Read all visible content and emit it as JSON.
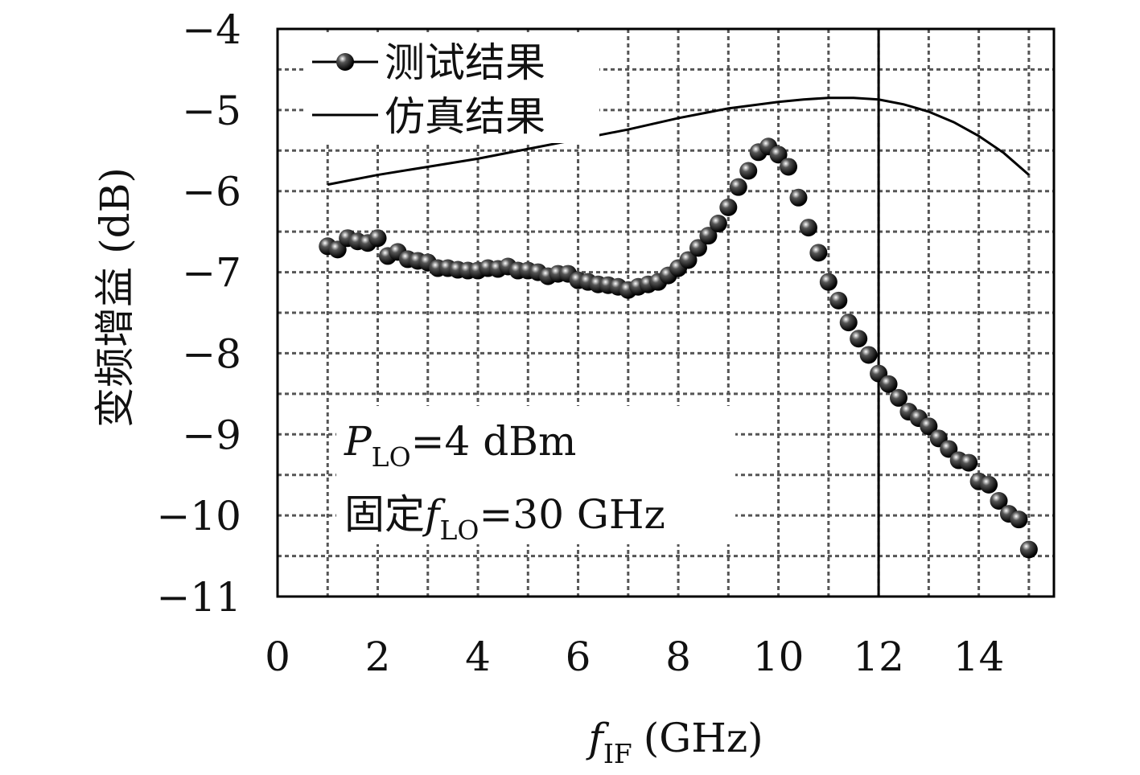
{
  "chart_data": {
    "type": "line",
    "xlabel": {
      "main": "f",
      "sub": "IF",
      "unit": "(GHz)"
    },
    "ylabel": "变频增益 (dB)",
    "xlim": [
      0,
      15.5
    ],
    "ylim": [
      -11,
      -4
    ],
    "x_ticks": [
      0,
      2,
      4,
      6,
      8,
      10,
      12,
      14
    ],
    "y_ticks": [
      -4,
      -5,
      -6,
      -7,
      -8,
      -9,
      -10,
      -11
    ],
    "y_tick_labels": [
      "−4",
      "−5",
      "−6",
      "−7",
      "−8",
      "−9",
      "−10",
      "−11"
    ],
    "x_tick_labels": [
      "0",
      "2",
      "4",
      "6",
      "8",
      "10",
      "12",
      "14"
    ],
    "grid": true,
    "reference_line_x": 12,
    "legend": {
      "placement": "top-left",
      "entries": [
        "测试结果",
        "仿真结果"
      ]
    },
    "annotation": {
      "line1": {
        "main": "P",
        "sub": "LO",
        "rest": "=4 dBm"
      },
      "line2": {
        "prefix": "固定",
        "main": "f",
        "sub": "LO",
        "rest": "=30 GHz"
      }
    },
    "series": [
      {
        "name": "测试结果",
        "style": "markers-line",
        "x": [
          1.0,
          1.2,
          1.4,
          1.6,
          1.8,
          2.0,
          2.2,
          2.4,
          2.6,
          2.8,
          3.0,
          3.2,
          3.4,
          3.6,
          3.8,
          4.0,
          4.2,
          4.4,
          4.6,
          4.8,
          5.0,
          5.2,
          5.4,
          5.6,
          5.8,
          6.0,
          6.2,
          6.4,
          6.6,
          6.8,
          7.0,
          7.2,
          7.4,
          7.6,
          7.8,
          8.0,
          8.2,
          8.4,
          8.6,
          8.8,
          9.0,
          9.2,
          9.4,
          9.6,
          9.8,
          10.0,
          10.2,
          10.4,
          10.6,
          10.8,
          11.0,
          11.2,
          11.4,
          11.6,
          11.8,
          12.0,
          12.2,
          12.4,
          12.6,
          12.8,
          13.0,
          13.2,
          13.4,
          13.6,
          13.8,
          14.0,
          14.2,
          14.4,
          14.6,
          14.8,
          15.0
        ],
        "y": [
          -6.68,
          -6.72,
          -6.58,
          -6.62,
          -6.64,
          -6.58,
          -6.8,
          -6.75,
          -6.84,
          -6.86,
          -6.88,
          -6.95,
          -6.95,
          -6.97,
          -6.98,
          -6.98,
          -6.95,
          -6.96,
          -6.93,
          -6.98,
          -6.98,
          -7.0,
          -7.05,
          -7.02,
          -7.02,
          -7.1,
          -7.12,
          -7.15,
          -7.16,
          -7.18,
          -7.22,
          -7.18,
          -7.15,
          -7.12,
          -7.04,
          -6.95,
          -6.85,
          -6.7,
          -6.55,
          -6.4,
          -6.2,
          -5.95,
          -5.75,
          -5.52,
          -5.45,
          -5.55,
          -5.7,
          -6.08,
          -6.45,
          -6.76,
          -7.12,
          -7.35,
          -7.62,
          -7.82,
          -8.02,
          -8.25,
          -8.38,
          -8.55,
          -8.72,
          -8.8,
          -8.9,
          -9.05,
          -9.18,
          -9.32,
          -9.35,
          -9.58,
          -9.62,
          -9.82,
          -9.98,
          -10.05,
          -10.42
        ]
      },
      {
        "name": "仿真结果",
        "style": "line",
        "x": [
          1.0,
          2.0,
          3.0,
          4.0,
          5.0,
          6.0,
          7.0,
          8.0,
          9.0,
          10.0,
          10.5,
          11.0,
          11.5,
          12.0,
          12.5,
          13.0,
          13.5,
          14.0,
          14.5,
          15.0
        ],
        "y": [
          -5.92,
          -5.8,
          -5.7,
          -5.6,
          -5.48,
          -5.36,
          -5.24,
          -5.1,
          -4.98,
          -4.9,
          -4.87,
          -4.85,
          -4.85,
          -4.87,
          -4.93,
          -5.02,
          -5.15,
          -5.32,
          -5.53,
          -5.8
        ]
      }
    ]
  }
}
